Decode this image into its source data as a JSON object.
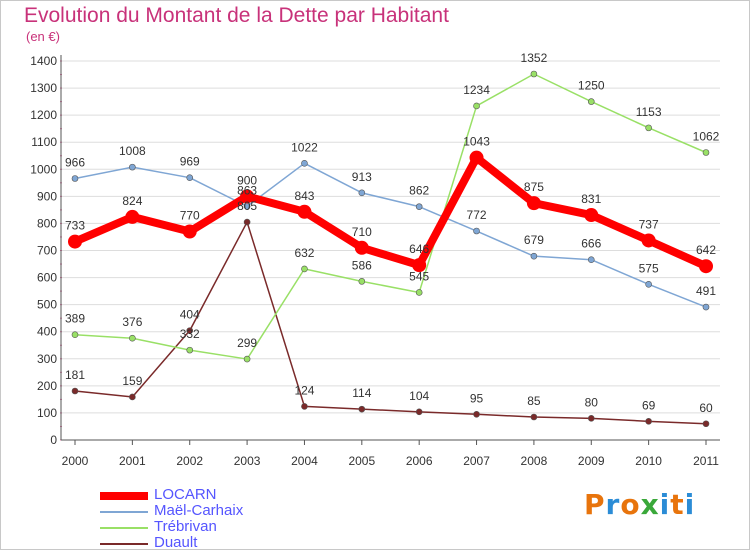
{
  "header": {
    "title": "Evolution du Montant de la Dette par Habitant",
    "unit": "(en €)"
  },
  "colors": {
    "title": "#c8327a",
    "axis_text": "#333333",
    "grid": "#dddddd",
    "legend_text": "#5555ff"
  },
  "chart_data": {
    "type": "line",
    "title": "Evolution du Montant de la Dette par Habitant",
    "subtitle": "(en €)",
    "xlabel": "",
    "ylabel": "",
    "x": [
      "2000",
      "2001",
      "2002",
      "2003",
      "2004",
      "2005",
      "2006",
      "2007",
      "2008",
      "2009",
      "2010",
      "2011"
    ],
    "ylim": [
      0,
      1400
    ],
    "yticks": [
      0,
      100,
      200,
      300,
      400,
      500,
      600,
      700,
      800,
      900,
      1000,
      1100,
      1200,
      1300,
      1400
    ],
    "grid": "horizontal",
    "legend_position": "bottom-left",
    "series": [
      {
        "name": "LOCARN",
        "color": "#ff0000",
        "values": [
          733,
          824,
          770,
          900,
          843,
          710,
          646,
          1043,
          875,
          831,
          737,
          642
        ],
        "labels": [
          "733",
          "824",
          "770",
          "900",
          "843",
          "710",
          "646",
          "1043",
          "875",
          "831",
          "737",
          "642"
        ]
      },
      {
        "name": "Maël-Carhaix",
        "color": "#7fa6d4",
        "values": [
          966,
          1008,
          969,
          863,
          1022,
          913,
          862,
          772,
          679,
          666,
          575,
          491
        ],
        "labels": [
          "966",
          "1008",
          "969",
          "863",
          "1022",
          "913",
          "862",
          "772",
          "679",
          "666",
          "575",
          "491"
        ]
      },
      {
        "name": "Trébrivan",
        "color": "#99e066",
        "values": [
          389,
          376,
          332,
          299,
          632,
          586,
          545,
          1234,
          1352,
          1250,
          1153,
          1062
        ],
        "labels": [
          "389",
          "376",
          "332",
          "299",
          "632",
          "586",
          "545",
          "1234",
          "1352",
          "1250",
          "1153",
          "1062"
        ]
      },
      {
        "name": "Duault",
        "color": "#7a2a2a",
        "values": [
          181,
          159,
          404,
          805,
          124,
          114,
          104,
          95,
          85,
          80,
          69,
          60
        ],
        "labels": [
          "181",
          "159",
          "404",
          "805",
          "124",
          "114",
          "104",
          "95",
          "85",
          "80",
          "69",
          "60"
        ]
      }
    ]
  },
  "brand": {
    "text": "Proxiti",
    "letter_colors": [
      "#e8740c",
      "#2b8cd6",
      "#e8740c",
      "#3aa83a",
      "#2b8cd6",
      "#e8740c",
      "#2b8cd6"
    ]
  }
}
